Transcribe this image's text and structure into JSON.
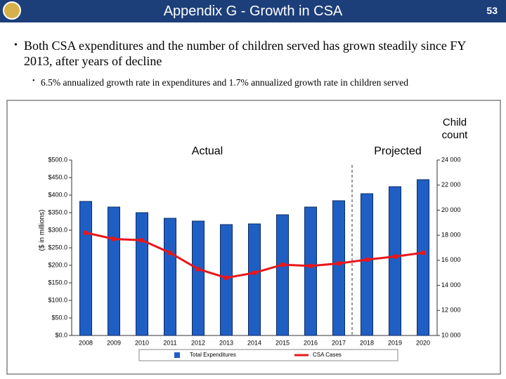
{
  "header": {
    "title": "Appendix G - Growth in CSA",
    "page_number": "53"
  },
  "bullets": [
    {
      "text": "Both CSA expenditures and the number of children served has grown steadily since FY 2013, after years of decline",
      "sub": [
        "6.5% annualized growth rate in expenditures and 1.7% annualized growth rate in children served"
      ]
    }
  ],
  "chart_data": {
    "type": "bar-line",
    "annotations": {
      "actual": "Actual",
      "projected": "Projected",
      "y2_title": "Child count"
    },
    "y_label": "($ in millions)",
    "categories": [
      "2008",
      "2009",
      "2010",
      "2011",
      "2012",
      "2013",
      "2014",
      "2015",
      "2016",
      "2017",
      "2018",
      "2019",
      "2020"
    ],
    "series": [
      {
        "name": "Total Expenditures",
        "type": "bar",
        "color": "#1f5fc4",
        "values": [
          382,
          366,
          350,
          334,
          326,
          316,
          318,
          344,
          366,
          384,
          404,
          424,
          444
        ]
      },
      {
        "name": "CSA Cases",
        "type": "line",
        "color": "#e8161b",
        "axis": "y2",
        "values": [
          18200,
          17700,
          17600,
          16600,
          15300,
          14600,
          15000,
          15650,
          15550,
          15750,
          16050,
          16300,
          16600
        ]
      }
    ],
    "ylim": [
      0,
      500
    ],
    "yticks": [
      {
        "value": 0,
        "label": "$0.0"
      },
      {
        "value": 50,
        "label": "$50.0"
      },
      {
        "value": 100,
        "label": "$100.0"
      },
      {
        "value": 150,
        "label": "$150.0"
      },
      {
        "value": 200,
        "label": "$200.0"
      },
      {
        "value": 250,
        "label": "$250.0"
      },
      {
        "value": 300,
        "label": "$300.0"
      },
      {
        "value": 350,
        "label": "$350.0"
      },
      {
        "value": 400,
        "label": "$400.0"
      },
      {
        "value": 450,
        "label": "$450.0"
      },
      {
        "value": 500,
        "label": "$500.0"
      }
    ],
    "y2lim": [
      10000,
      24000
    ],
    "y2ticks": [
      {
        "value": 10000,
        "label": "10 000"
      },
      {
        "value": 12000,
        "label": "12 000"
      },
      {
        "value": 14000,
        "label": "14 000"
      },
      {
        "value": 16000,
        "label": "16 000"
      },
      {
        "value": 18000,
        "label": "18 000"
      },
      {
        "value": 20000,
        "label": "20 000"
      },
      {
        "value": 22000,
        "label": "22 000"
      },
      {
        "value": 24000,
        "label": "24 000"
      }
    ],
    "legend": "bottom"
  }
}
